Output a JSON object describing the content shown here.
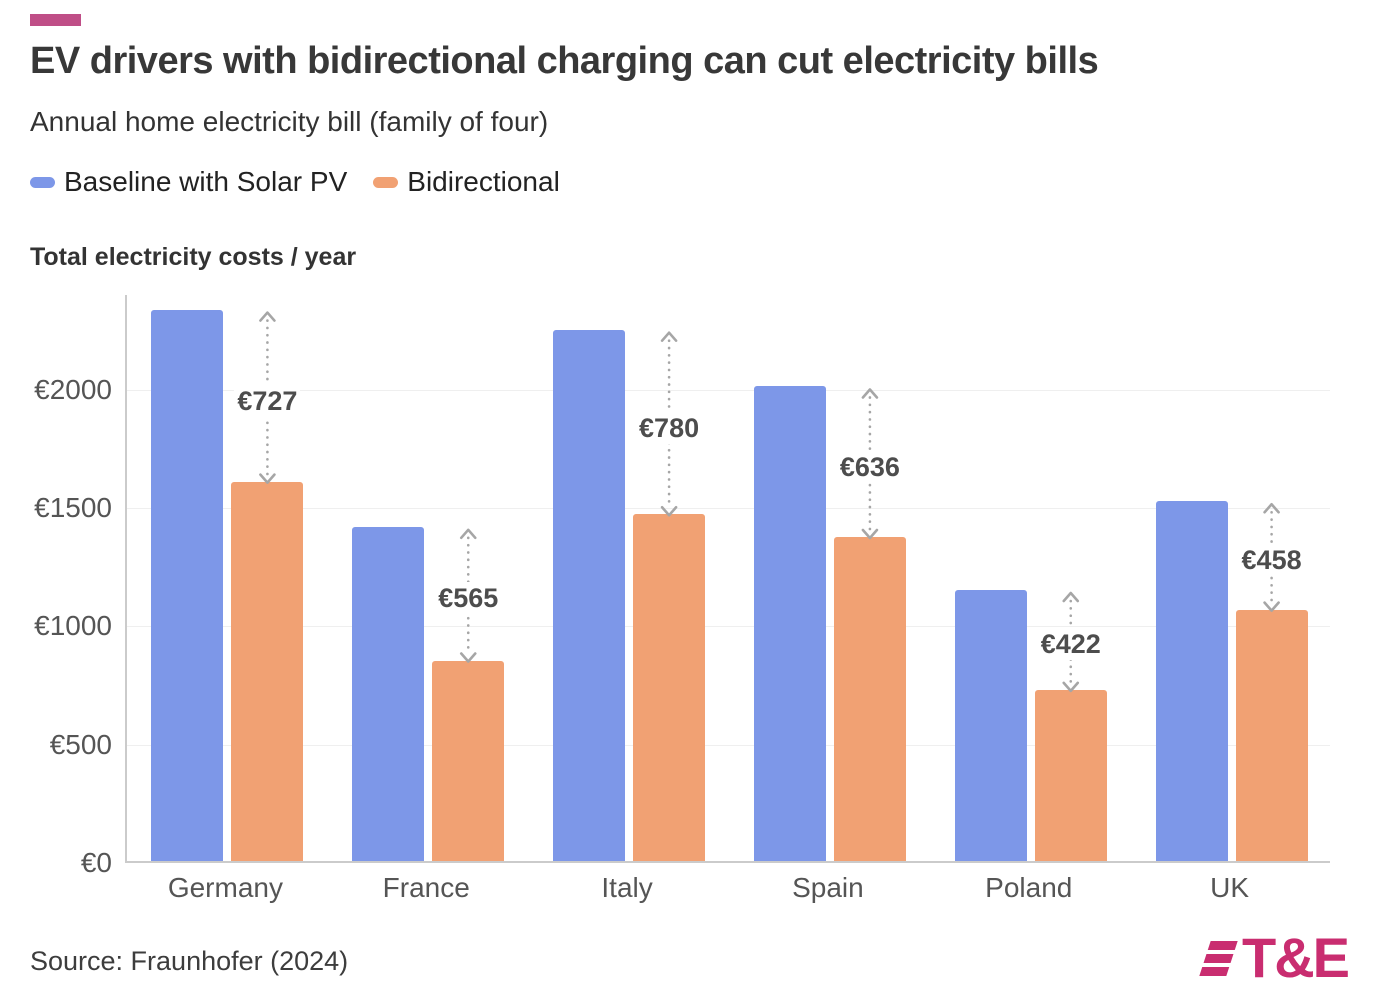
{
  "header": {
    "accent_color": "#bf4e87",
    "title": "EV drivers with bidirectional charging can cut electricity bills",
    "subtitle": "Annual home electricity bill (family of four)"
  },
  "legend": [
    {
      "label": "Baseline with Solar PV",
      "color": "#7d97e8"
    },
    {
      "label": "Bidirectional",
      "color": "#f1a173"
    }
  ],
  "chart_data": {
    "type": "bar",
    "title": "Total electricity costs / year",
    "categories": [
      "Germany",
      "France",
      "Italy",
      "Spain",
      "Poland",
      "UK"
    ],
    "series": [
      {
        "name": "Baseline with Solar PV",
        "color": "#7d97e8",
        "values": [
          2330,
          1412,
          2245,
          2005,
          1145,
          1520
        ]
      },
      {
        "name": "Bidirectional",
        "color": "#f1a173",
        "values": [
          1603,
          847,
          1465,
          1369,
          723,
          1062
        ]
      }
    ],
    "diff_labels": [
      "€727",
      "€565",
      "€780",
      "€636",
      "€422",
      "€458"
    ],
    "y_ticks": [
      "€0",
      "€500",
      "€1000",
      "€1500",
      "€2000"
    ],
    "y_tick_values": [
      0,
      500,
      1000,
      1500,
      2000
    ],
    "ylim": [
      0,
      2400
    ],
    "ylabel": "Total electricity costs / year",
    "grid": true,
    "legend_position": "top",
    "arrow_color": "#a6a6a6"
  },
  "footer": {
    "source": "Source: Fraunhofer (2024)",
    "logo_text": "T&E",
    "logo_color": "#c92d70"
  }
}
